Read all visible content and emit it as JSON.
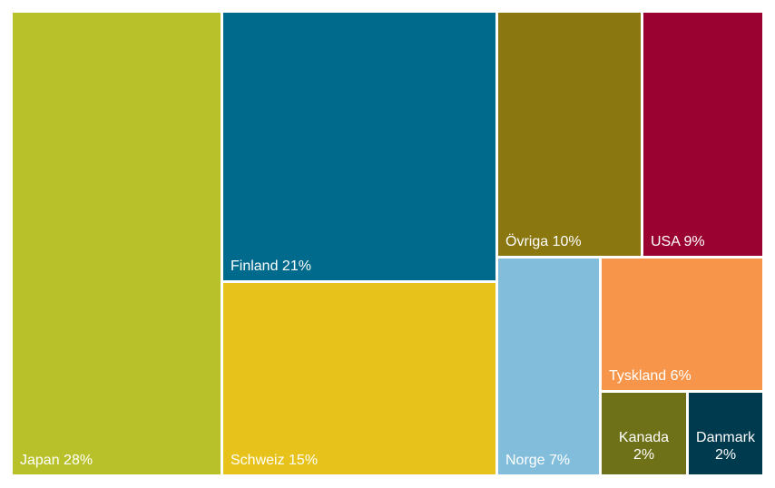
{
  "chart_data": {
    "type": "treemap",
    "values_unit": "%",
    "items": [
      {
        "name": "Japan",
        "value": 28,
        "label": "Japan 28%",
        "color": "#b8c12a"
      },
      {
        "name": "Finland",
        "value": 21,
        "label": "Finland 21%",
        "color": "#006a8c"
      },
      {
        "name": "Schweiz",
        "value": 15,
        "label": "Schweiz 15%",
        "color": "#e6c21a"
      },
      {
        "name": "Övriga",
        "value": 10,
        "label": "Övriga 10%",
        "color": "#8a7710"
      },
      {
        "name": "USA",
        "value": 9,
        "label": "USA 9%",
        "color": "#9a0232"
      },
      {
        "name": "Norge",
        "value": 7,
        "label": "Norge 7%",
        "color": "#82bedc"
      },
      {
        "name": "Tyskland",
        "value": 6,
        "label": "Tyskland 6%",
        "color": "#f7964a"
      },
      {
        "name": "Kanada",
        "value": 2,
        "label_line1": "Kanada",
        "label_line2": "2%",
        "color": "#6e7118"
      },
      {
        "name": "Danmark",
        "value": 2,
        "label_line1": "Danmark",
        "label_line2": "2%",
        "color": "#003a4e"
      }
    ]
  }
}
